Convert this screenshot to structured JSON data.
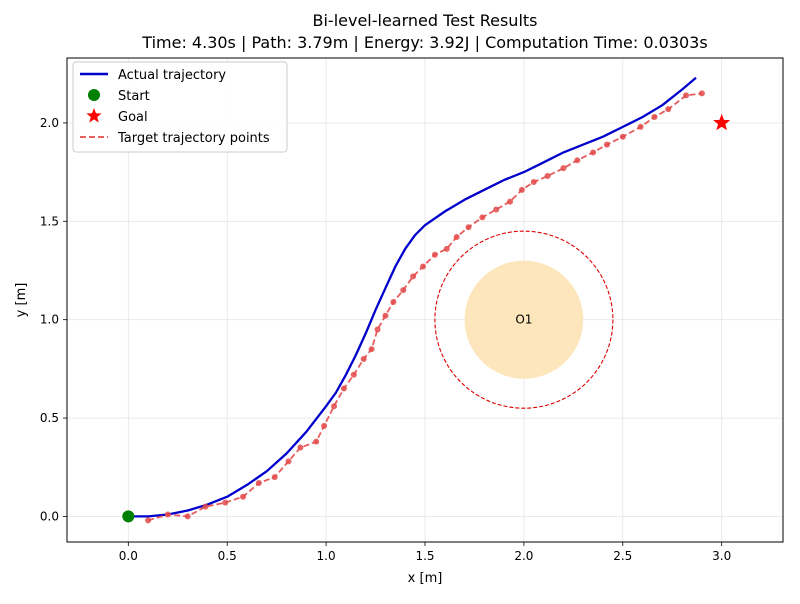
{
  "chart_data": {
    "type": "line",
    "title": "Bi-level-learned Test Results",
    "subtitle": "Time: 4.30s | Path: 3.79m | Energy: 3.92J | Computation Time: 0.0303s",
    "xlabel": "x [m]",
    "ylabel": "y [m]",
    "xlim": [
      -0.31,
      3.31
    ],
    "ylim": [
      -0.13,
      2.33
    ],
    "xticks": [
      0.0,
      0.5,
      1.0,
      1.5,
      2.0,
      2.5,
      3.0
    ],
    "xtick_labels": [
      "0.0",
      "0.5",
      "1.0",
      "1.5",
      "2.0",
      "2.5",
      "3.0"
    ],
    "yticks": [
      0.0,
      0.5,
      1.0,
      1.5,
      2.0
    ],
    "ytick_labels": [
      "0.0",
      "0.5",
      "1.0",
      "1.5",
      "2.0"
    ],
    "grid": true,
    "legend_position": "top-left",
    "legend": [
      {
        "label": "Actual trajectory",
        "kind": "line",
        "color": "#0000cc"
      },
      {
        "label": "Start",
        "kind": "circle-marker",
        "color": "#008000"
      },
      {
        "label": "Goal",
        "kind": "star-marker",
        "color": "#ff0000"
      },
      {
        "label": "Target trajectory points",
        "kind": "dashed-line",
        "color": "#e34a4a"
      }
    ],
    "series": [
      {
        "name": "Actual trajectory",
        "color": "#0000cc",
        "style": "solid",
        "x": [
          0.0,
          0.1,
          0.2,
          0.3,
          0.4,
          0.5,
          0.6,
          0.7,
          0.8,
          0.9,
          1.0,
          1.05,
          1.1,
          1.15,
          1.2,
          1.25,
          1.3,
          1.35,
          1.4,
          1.45,
          1.5,
          1.6,
          1.7,
          1.8,
          1.9,
          2.0,
          2.1,
          2.2,
          2.3,
          2.4,
          2.5,
          2.6,
          2.7,
          2.8,
          2.87
        ],
        "y": [
          0.0,
          0.0,
          0.01,
          0.03,
          0.06,
          0.1,
          0.16,
          0.23,
          0.32,
          0.43,
          0.56,
          0.63,
          0.72,
          0.82,
          0.93,
          1.05,
          1.16,
          1.27,
          1.36,
          1.43,
          1.48,
          1.55,
          1.61,
          1.66,
          1.71,
          1.75,
          1.8,
          1.85,
          1.89,
          1.93,
          1.98,
          2.03,
          2.09,
          2.17,
          2.23
        ]
      },
      {
        "name": "Target trajectory points",
        "color": "#e34a4a",
        "style": "dashed",
        "x": [
          0.1,
          0.2,
          0.3,
          0.39,
          0.49,
          0.58,
          0.66,
          0.74,
          0.81,
          0.87,
          0.95,
          0.99,
          1.04,
          1.09,
          1.14,
          1.19,
          1.23,
          1.26,
          1.3,
          1.34,
          1.39,
          1.44,
          1.49,
          1.55,
          1.61,
          1.66,
          1.72,
          1.79,
          1.86,
          1.93,
          1.99,
          2.05,
          2.12,
          2.2,
          2.27,
          2.35,
          2.42,
          2.5,
          2.59,
          2.66,
          2.73,
          2.82,
          2.9
        ],
        "y": [
          -0.02,
          0.01,
          0.0,
          0.05,
          0.07,
          0.1,
          0.17,
          0.2,
          0.28,
          0.35,
          0.38,
          0.46,
          0.56,
          0.65,
          0.72,
          0.8,
          0.85,
          0.95,
          1.02,
          1.09,
          1.15,
          1.22,
          1.27,
          1.33,
          1.36,
          1.42,
          1.47,
          1.52,
          1.56,
          1.6,
          1.66,
          1.7,
          1.73,
          1.77,
          1.81,
          1.85,
          1.89,
          1.93,
          1.98,
          2.03,
          2.07,
          2.14,
          2.15
        ]
      }
    ],
    "start": {
      "label": "Start",
      "x": 0.0,
      "y": 0.0,
      "color": "#008000"
    },
    "goal": {
      "label": "Goal",
      "x": 3.0,
      "y": 2.0,
      "color": "#ff0000"
    },
    "obstacle": {
      "label": "O1",
      "cx": 2.0,
      "cy": 1.0,
      "radius": 0.3,
      "safety_radius": 0.45,
      "fill_color": "#fde5b8",
      "safety_color": "#dd0000"
    }
  }
}
